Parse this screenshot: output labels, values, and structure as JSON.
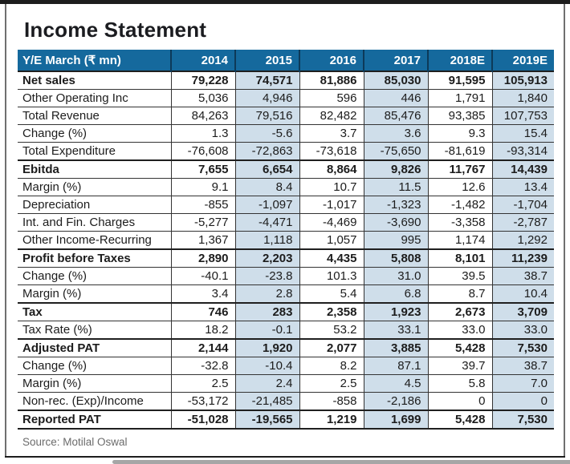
{
  "page": {
    "title": "Income Statement",
    "source": "Source: Motilal Oswal"
  },
  "colors": {
    "header_bg": "#15699d",
    "header_divider": "#0d3a59",
    "shade_bg": "#cfdeea",
    "frame_dark": "#1d1d1d",
    "frame_gray": "#6f6f6f"
  },
  "table": {
    "header": [
      "Y/E March (₹ mn)",
      "2014",
      "2015",
      "2016",
      "2017",
      "2018E",
      "2019E"
    ],
    "shaded_value_columns": [
      1,
      3,
      5
    ],
    "rows": [
      {
        "label": "Net sales",
        "bold": true,
        "values": [
          "79,228",
          "74,571",
          "81,886",
          "85,030",
          "91,595",
          "105,913"
        ]
      },
      {
        "label": "Other Operating Inc",
        "bold": false,
        "values": [
          "5,036",
          "4,946",
          "596",
          "446",
          "1,791",
          "1,840"
        ]
      },
      {
        "label": "Total Revenue",
        "bold": false,
        "values": [
          "84,263",
          "79,516",
          "82,482",
          "85,476",
          "93,385",
          "107,753"
        ]
      },
      {
        "label": "Change (%)",
        "bold": false,
        "values": [
          "1.3",
          "-5.6",
          "3.7",
          "3.6",
          "9.3",
          "15.4"
        ]
      },
      {
        "label": "Total Expenditure",
        "bold": false,
        "values": [
          "-76,608",
          "-72,863",
          "-73,618",
          "-75,650",
          "-81,619",
          "-93,314"
        ]
      },
      {
        "label": "Ebitda",
        "bold": true,
        "values": [
          "7,655",
          "6,654",
          "8,864",
          "9,826",
          "11,767",
          "14,439"
        ]
      },
      {
        "label": "Margin (%)",
        "bold": false,
        "values": [
          "9.1",
          "8.4",
          "10.7",
          "11.5",
          "12.6",
          "13.4"
        ]
      },
      {
        "label": "Depreciation",
        "bold": false,
        "values": [
          "-855",
          "-1,097",
          "-1,017",
          "-1,323",
          "-1,482",
          "-1,704"
        ]
      },
      {
        "label": "Int. and Fin. Charges",
        "bold": false,
        "values": [
          "-5,277",
          "-4,471",
          "-4,469",
          "-3,690",
          "-3,358",
          "-2,787"
        ]
      },
      {
        "label": "Other Income-Recurring",
        "bold": false,
        "values": [
          "1,367",
          "1,118",
          "1,057",
          "995",
          "1,174",
          "1,292"
        ]
      },
      {
        "label": "Profit before Taxes",
        "bold": true,
        "values": [
          "2,890",
          "2,203",
          "4,435",
          "5,808",
          "8,101",
          "11,239"
        ]
      },
      {
        "label": "Change (%)",
        "bold": false,
        "values": [
          "-40.1",
          "-23.8",
          "101.3",
          "31.0",
          "39.5",
          "38.7"
        ]
      },
      {
        "label": "Margin (%)",
        "bold": false,
        "values": [
          "3.4",
          "2.8",
          "5.4",
          "6.8",
          "8.7",
          "10.4"
        ]
      },
      {
        "label": "Tax",
        "bold": true,
        "values": [
          "746",
          "283",
          "2,358",
          "1,923",
          "2,673",
          "3,709"
        ]
      },
      {
        "label": "Tax Rate (%)",
        "bold": false,
        "values": [
          "18.2",
          "-0.1",
          "53.2",
          "33.1",
          "33.0",
          "33.0"
        ]
      },
      {
        "label": "Adjusted PAT",
        "bold": true,
        "values": [
          "2,144",
          "1,920",
          "2,077",
          "3,885",
          "5,428",
          "7,530"
        ]
      },
      {
        "label": "Change (%)",
        "bold": false,
        "values": [
          "-32.8",
          "-10.4",
          "8.2",
          "87.1",
          "39.7",
          "38.7"
        ]
      },
      {
        "label": "Margin (%)",
        "bold": false,
        "values": [
          "2.5",
          "2.4",
          "2.5",
          "4.5",
          "5.8",
          "7.0"
        ]
      },
      {
        "label": "Non-rec. (Exp)/Income",
        "bold": false,
        "values": [
          "-53,172",
          "-21,485",
          "-858",
          "-2,186",
          "0",
          "0"
        ]
      },
      {
        "label": "Reported PAT",
        "bold": true,
        "values": [
          "-51,028",
          "-19,565",
          "1,219",
          "1,699",
          "5,428",
          "7,530"
        ]
      }
    ]
  }
}
